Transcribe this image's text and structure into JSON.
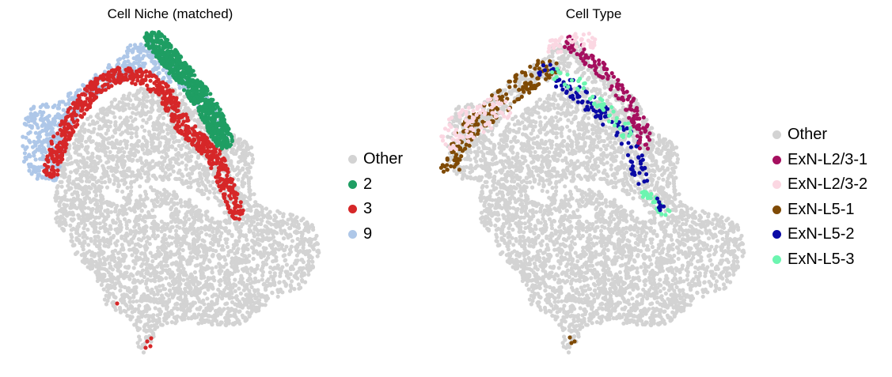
{
  "chart_data": [
    {
      "type": "scatter",
      "title": "Cell Niche (matched)",
      "legend_position": "right",
      "axes_visible": false,
      "series": [
        {
          "name": "Other",
          "color": "#d3d3d3"
        },
        {
          "name": "2",
          "color": "#1f9e63"
        },
        {
          "name": "3",
          "color": "#d62728"
        },
        {
          "name": "9",
          "color": "#aec7e8"
        }
      ]
    },
    {
      "type": "scatter",
      "title": "Cell Type",
      "legend_position": "right",
      "axes_visible": false,
      "series": [
        {
          "name": "Other",
          "color": "#d3d3d3"
        },
        {
          "name": "ExN-L2/3-1",
          "color": "#a50f5f"
        },
        {
          "name": "ExN-L2/3-2",
          "color": "#fbd7e2"
        },
        {
          "name": "ExN-L5-1",
          "color": "#7f4a05"
        },
        {
          "name": "ExN-L5-2",
          "color": "#0a0aa5"
        },
        {
          "name": "ExN-L5-3",
          "color": "#6cf5b0"
        }
      ]
    }
  ]
}
